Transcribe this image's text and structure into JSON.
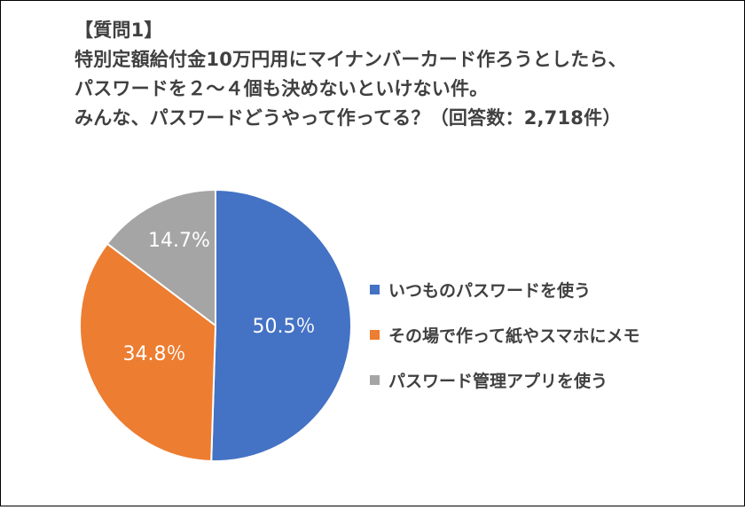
{
  "chart_data": {
    "type": "pie",
    "title": "【質問1】",
    "subtitle_lines": [
      "特別定額給付金10万円用にマイナンバーカード作ろうとしたら、",
      "パスワードを２～４個も決めないといけない件。",
      "みんな、パスワードどうやって作ってる？（回答数：2,718件）"
    ],
    "categories": [
      "いつものパスワードを使う",
      "その場で作って紙やスマホにメモ",
      "パスワード管理アプリを使う"
    ],
    "values": [
      50.5,
      34.8,
      14.7
    ],
    "data_labels": [
      "50.5％",
      "34.8％",
      "14.7%"
    ],
    "colors": [
      "#4472C4",
      "#ED7D31",
      "#A5A5A5"
    ],
    "legend_position": "right"
  }
}
